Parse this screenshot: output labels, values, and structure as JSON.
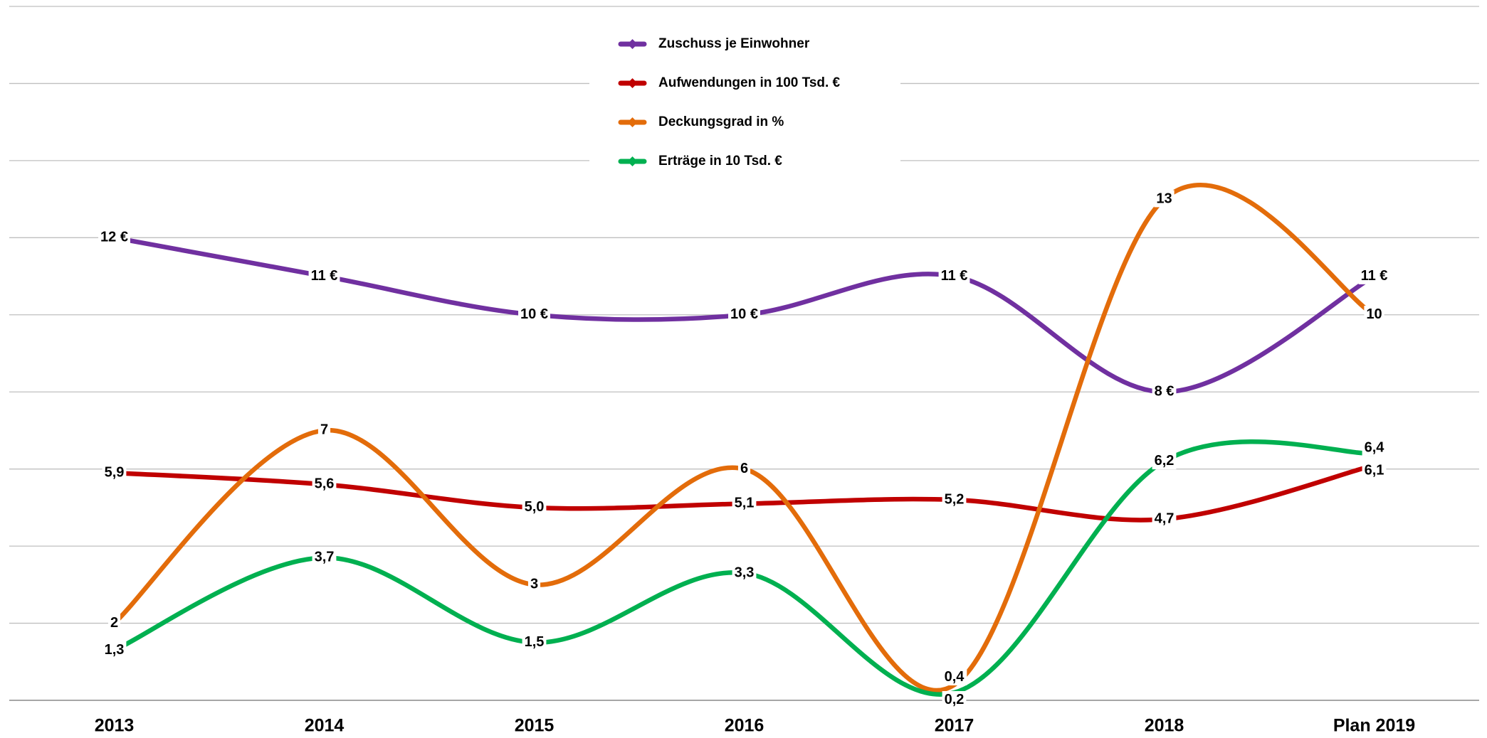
{
  "chart_data": {
    "type": "line",
    "categories": [
      "2013",
      "2014",
      "2015",
      "2016",
      "2017",
      "2018",
      "Plan 2019"
    ],
    "series": [
      {
        "name": "Zuschuss je Einwohner",
        "color": "#7030a0",
        "values": [
          12,
          11,
          10,
          10,
          11,
          8,
          11
        ],
        "value_labels": [
          "12 €",
          "11 €",
          "10 €",
          "10 €",
          "11 €",
          "8 €",
          "11 €"
        ]
      },
      {
        "name": "Aufwendungen in 100 Tsd. €",
        "color": "#c00000",
        "values": [
          5.9,
          5.6,
          5.0,
          5.1,
          5.2,
          4.7,
          6.1
        ],
        "value_labels": [
          "5,9",
          "5,6",
          "5,0",
          "5,1",
          "5,2",
          "4,7",
          "6,1"
        ]
      },
      {
        "name": "Deckungsgrad in %",
        "color": "#e36c0a",
        "values": [
          2,
          7,
          3,
          6,
          0.4,
          13,
          10
        ],
        "value_labels": [
          "2",
          "7",
          "3",
          "6",
          "0,4",
          "13",
          "10"
        ]
      },
      {
        "name": "Erträge in 10 Tsd. €",
        "color": "#00b050",
        "values": [
          1.3,
          3.7,
          1.5,
          3.3,
          0.2,
          6.2,
          6.4
        ],
        "value_labels": [
          "1,3",
          "3,7",
          "1,5",
          "3,3",
          "0,2",
          "6,2",
          "6,4"
        ]
      }
    ],
    "ylim": [
      0,
      18
    ],
    "yticks": [
      0,
      2,
      4,
      6,
      8,
      10,
      12,
      14,
      16,
      18
    ],
    "grid": true,
    "legend": "top"
  }
}
